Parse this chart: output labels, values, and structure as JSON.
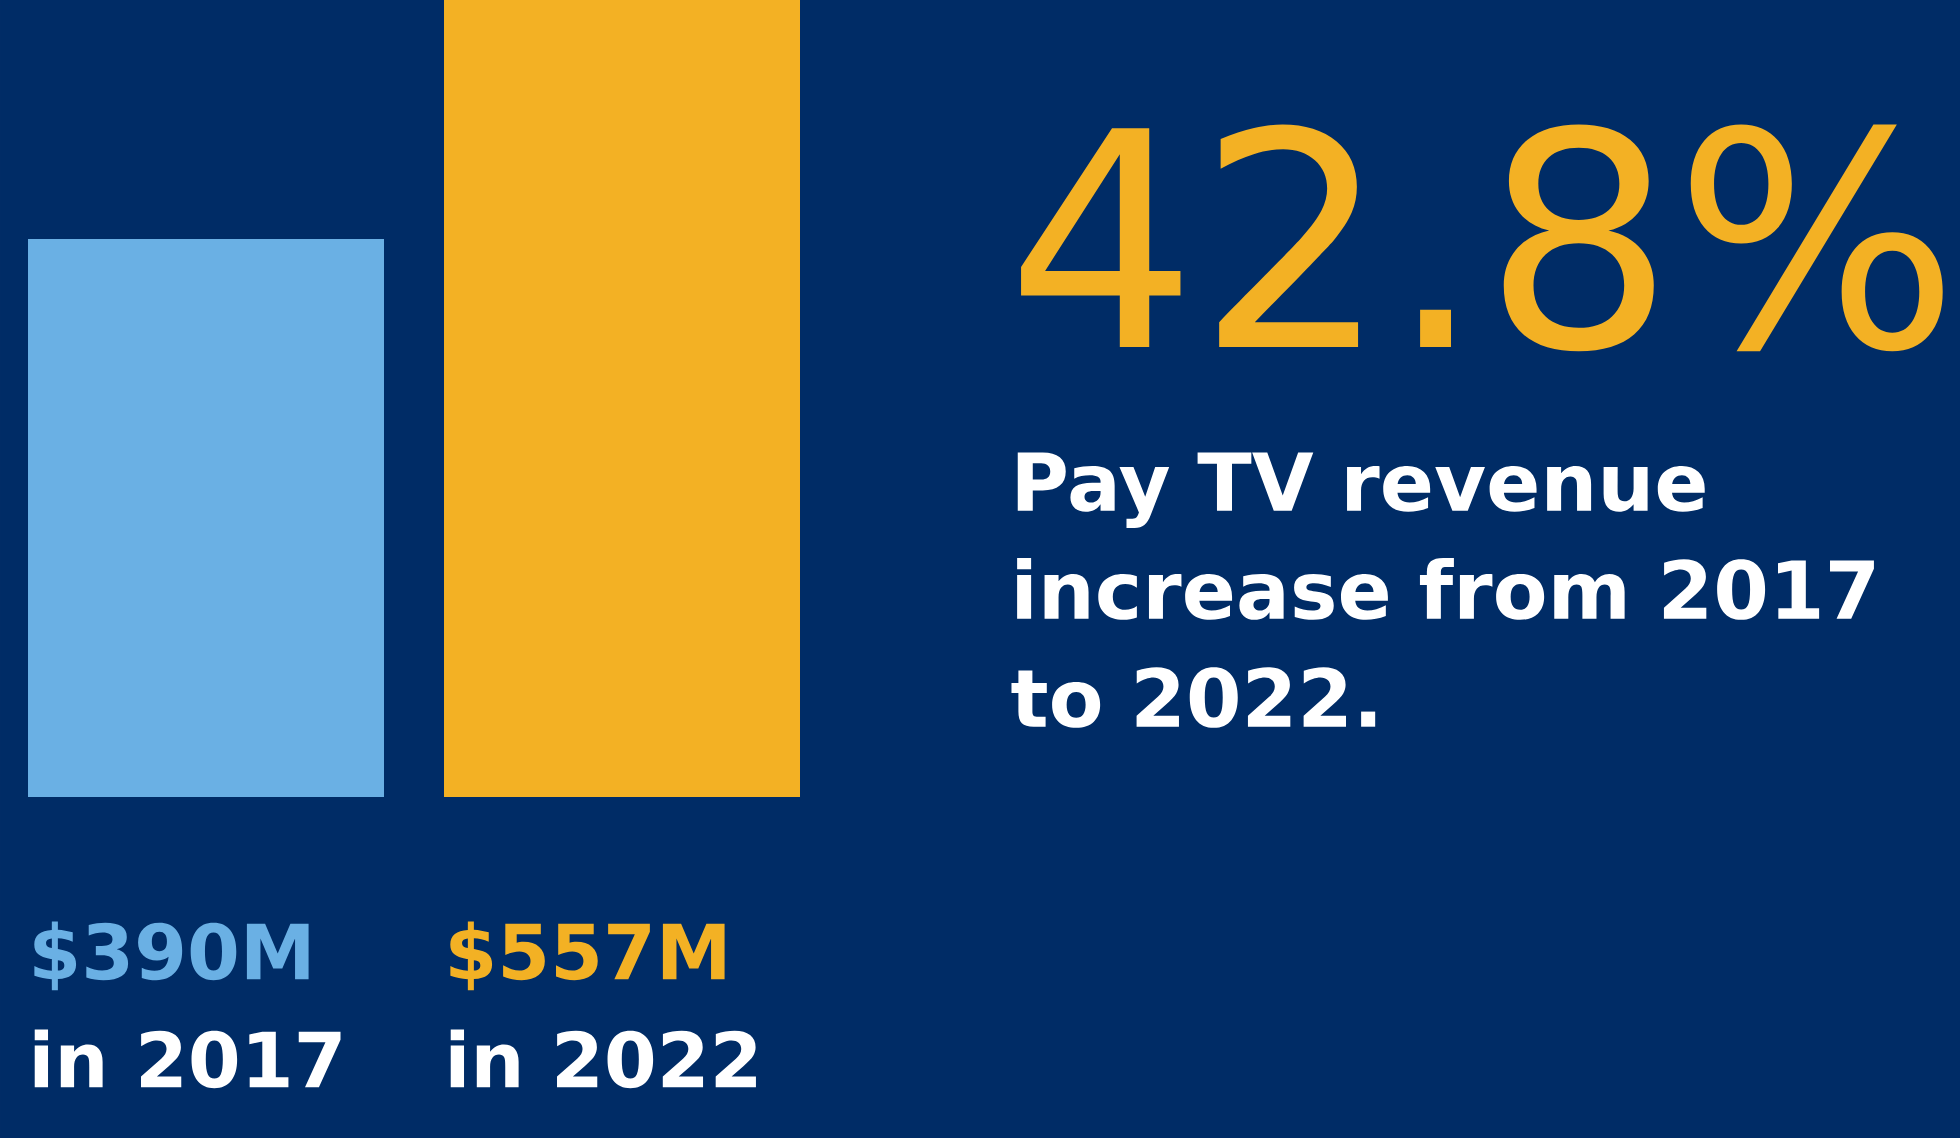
{
  "chart_data": {
    "type": "bar",
    "categories": [
      "in 2017",
      "in 2022"
    ],
    "values": [
      390,
      557
    ],
    "colors": [
      "#6ab0e4",
      "#f3b124"
    ],
    "value_labels": [
      "$390M",
      "$557M"
    ],
    "annotations": [
      "42.8%",
      "Pay TV revenue increase from 2017 to 2022."
    ]
  }
}
